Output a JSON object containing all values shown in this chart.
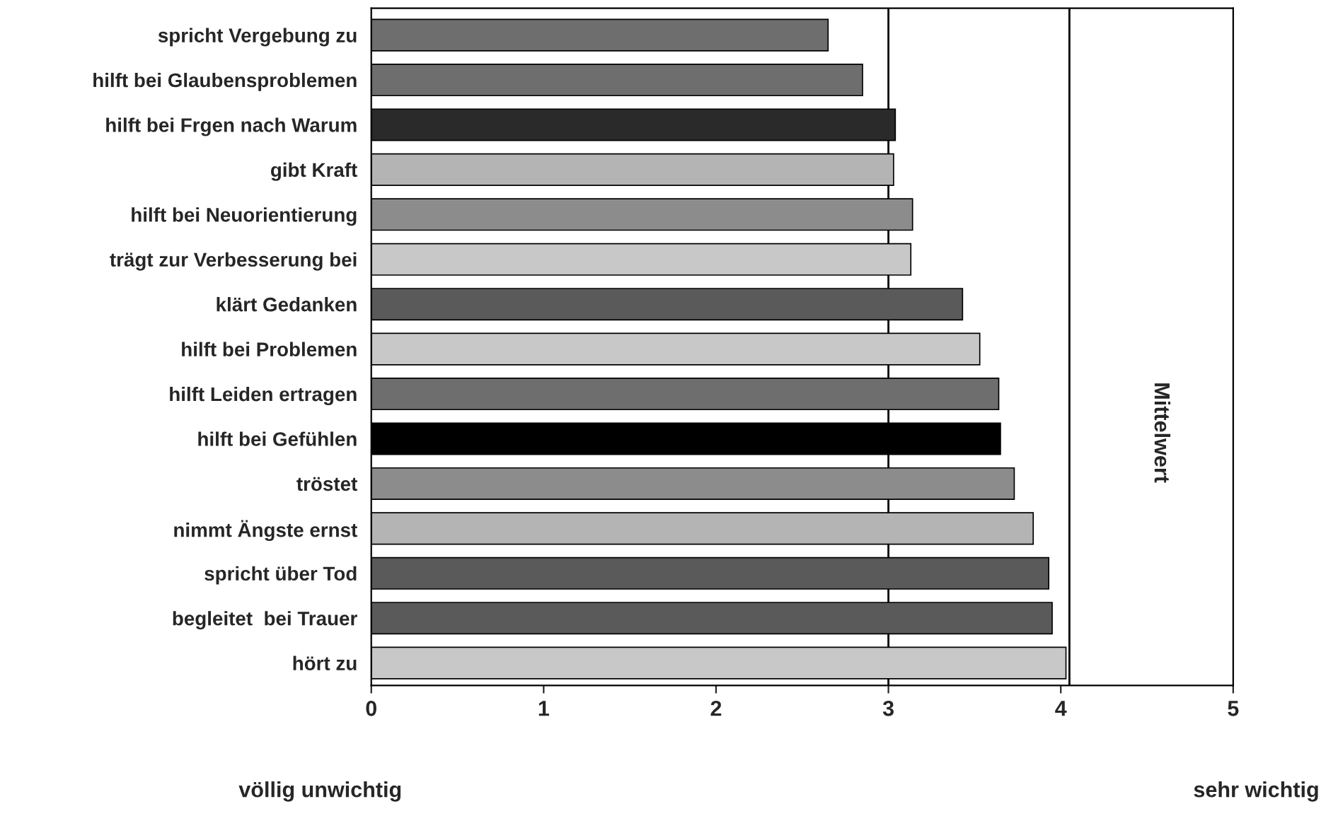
{
  "chart_data": {
    "type": "bar",
    "orientation": "horizontal",
    "categories": [
      "spricht Vergebung zu",
      "hilft bei Glaubensproblemen",
      "hilft bei Frgen nach Warum",
      "gibt Kraft",
      "hilft bei Neuorientierung",
      "trägt zur Verbesserung bei",
      "klärt Gedanken",
      "hilft bei Problemen",
      "hilft Leiden ertragen",
      "hilft bei Gefühlen",
      "tröstet",
      "nimmt Ängste ernst",
      "spricht über Tod",
      "begleitet  bei Trauer",
      "hört zu"
    ],
    "values": [
      2.65,
      2.85,
      3.04,
      3.03,
      3.14,
      3.13,
      3.43,
      3.53,
      3.64,
      3.65,
      3.73,
      3.84,
      3.93,
      3.95,
      4.03
    ],
    "colors": [
      "#6e6e6e",
      "#6e6e6e",
      "#2a2a2a",
      "#b4b4b4",
      "#8c8c8c",
      "#c8c8c8",
      "#5a5a5a",
      "#c8c8c8",
      "#6e6e6e",
      "#000000",
      "#8c8c8c",
      "#b4b4b4",
      "#5a5a5a",
      "#5a5a5a",
      "#c8c8c8"
    ],
    "xlim": [
      0,
      5
    ],
    "xticks": [
      0,
      1,
      2,
      3,
      4,
      5
    ],
    "ref_lines": [
      {
        "axis": "x",
        "value": 3,
        "color": "#000000"
      },
      {
        "axis": "x",
        "value": 4.05,
        "color": "#000000"
      }
    ],
    "annotations": [
      "völlig unwichtig",
      "sehr wichtig",
      "Mittelwert"
    ],
    "grid": false,
    "legend": false
  }
}
